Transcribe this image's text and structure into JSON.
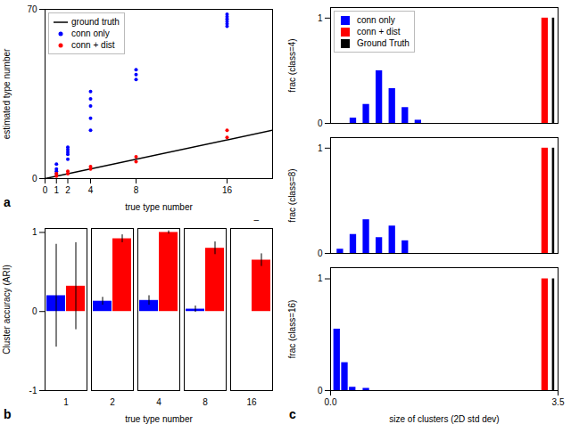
{
  "chart_data": [
    {
      "type": "scatter",
      "xlabel": "true type number",
      "ylabel": "estimated type number",
      "xlim": [
        0,
        20
      ],
      "xticks": [
        0,
        1,
        2,
        4,
        8,
        16
      ],
      "ylim": [
        0,
        70
      ],
      "yticks": [
        0,
        70
      ],
      "legend": "upper left",
      "annotations": [
        "a"
      ],
      "series": [
        {
          "name": "ground truth",
          "type": "line",
          "color": "#000000",
          "x": [
            0,
            20
          ],
          "values": [
            0,
            20
          ]
        },
        {
          "name": "conn only",
          "type": "scatter",
          "color": "#0000ff",
          "x": [
            1,
            1,
            1,
            1,
            2,
            2,
            2,
            2,
            2,
            4,
            4,
            4,
            4,
            4,
            8,
            8,
            8,
            16,
            16,
            16,
            16,
            16,
            16
          ],
          "values": [
            2,
            3,
            4,
            6,
            8,
            10,
            11,
            12,
            13,
            20,
            25,
            30,
            33,
            36,
            41,
            43,
            45,
            63,
            64,
            65,
            66,
            67,
            68
          ]
        },
        {
          "name": "conn + dist",
          "type": "scatter",
          "color": "#ff0000",
          "x": [
            1,
            1,
            2,
            2,
            4,
            4,
            8,
            8,
            16,
            16
          ],
          "values": [
            1,
            2,
            2,
            3,
            4,
            5,
            7,
            9,
            17,
            20
          ]
        }
      ]
    },
    {
      "type": "bar",
      "xlabel": "true type number",
      "ylabel": "Cluster accuracy (ARI)",
      "categories": [
        "1",
        "2",
        "4",
        "8",
        "16"
      ],
      "ylim": [
        -1,
        1.05
      ],
      "yticks": [
        -1,
        0,
        1
      ],
      "annotations": [
        "–",
        "b"
      ],
      "series": [
        {
          "color": "#0000ff",
          "values": [
            0.2,
            0.13,
            0.14,
            0.03,
            0.0
          ],
          "errors": [
            0.65,
            0.05,
            0.06,
            0.04,
            0.0
          ]
        },
        {
          "color": "#ff0000",
          "values": [
            0.32,
            0.92,
            1.0,
            0.8,
            0.65
          ],
          "errors": [
            0.55,
            0.05,
            0.02,
            0.08,
            0.08
          ]
        }
      ]
    },
    {
      "type": "bar",
      "ylabel": "frac (class=4)",
      "xlim": [
        0.0,
        3.5
      ],
      "ylim": [
        0,
        1.1
      ],
      "yticks": [
        0,
        1
      ],
      "tick_labels": "y",
      "legend": "upper left",
      "series": [
        {
          "name": "conn only",
          "color": "#0000ff",
          "x": [
            0.35,
            0.55,
            0.75,
            0.95,
            1.15,
            1.35
          ],
          "values": [
            0.05,
            0.18,
            0.5,
            0.33,
            0.15,
            0.03
          ]
        },
        {
          "name": "conn + dist",
          "color": "#ff0000",
          "x": [
            3.3
          ],
          "values": [
            1.0
          ]
        },
        {
          "name": "Ground Truth",
          "color": "#000000",
          "x": [
            3.43
          ],
          "values": [
            1.0
          ]
        }
      ]
    },
    {
      "type": "bar",
      "ylabel": "frac (class=8)",
      "xlim": [
        0.0,
        3.5
      ],
      "ylim": [
        0,
        1.1
      ],
      "yticks": [
        0,
        1
      ],
      "tick_labels": "y",
      "series": [
        {
          "color": "#0000ff",
          "x": [
            0.15,
            0.35,
            0.55,
            0.75,
            0.95,
            1.15
          ],
          "values": [
            0.04,
            0.18,
            0.32,
            0.15,
            0.26,
            0.12
          ]
        },
        {
          "color": "#ff0000",
          "x": [
            3.3
          ],
          "values": [
            1.0
          ]
        },
        {
          "color": "#000000",
          "x": [
            3.43
          ],
          "values": [
            1.0
          ]
        }
      ]
    },
    {
      "type": "bar",
      "xlabel": "size of clusters (2D std dev)",
      "ylabel": "frac (class=16)",
      "xlim": [
        0.0,
        3.5
      ],
      "xticks": [
        {
          "value": 0,
          "label": "0.0"
        },
        3.5
      ],
      "ylim": [
        0,
        1.1
      ],
      "yticks": [
        0,
        1
      ],
      "annotations": [
        "c"
      ],
      "series": [
        {
          "color": "#0000ff",
          "x": [
            0.1,
            0.22,
            0.34,
            0.55
          ],
          "values": [
            0.55,
            0.25,
            0.03,
            0.02
          ]
        },
        {
          "color": "#ff0000",
          "x": [
            3.3
          ],
          "values": [
            1.0
          ]
        },
        {
          "color": "#000000",
          "x": [
            3.43
          ],
          "values": [
            1.0
          ]
        }
      ]
    }
  ]
}
